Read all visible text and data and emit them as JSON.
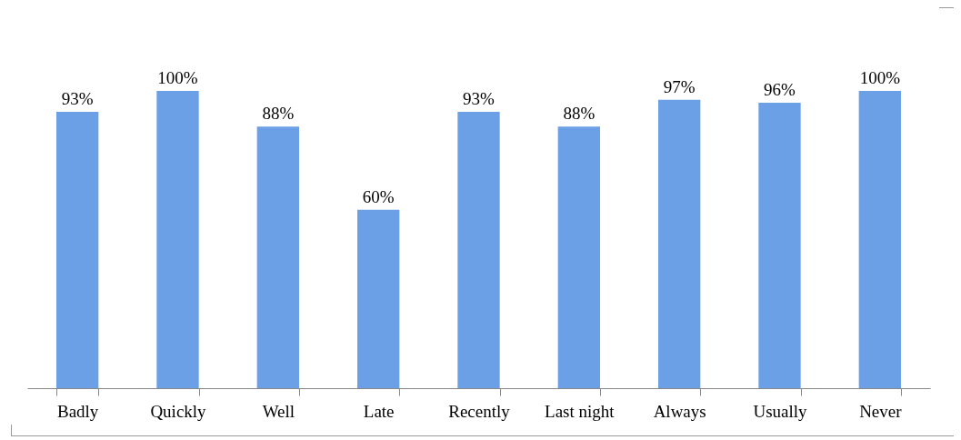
{
  "chart_data": {
    "type": "bar",
    "categories": [
      "Badly",
      "Quickly",
      "Well",
      "Late",
      "Recently",
      "Last night",
      "Always",
      "Usually",
      "Never"
    ],
    "values": [
      93,
      100,
      88,
      60,
      93,
      88,
      97,
      96,
      100
    ],
    "value_labels": [
      "93%",
      "100%",
      "88%",
      "60%",
      "93%",
      "88%",
      "97%",
      "96%",
      "100%"
    ],
    "color": "#6b9fe6",
    "grid": false
  }
}
